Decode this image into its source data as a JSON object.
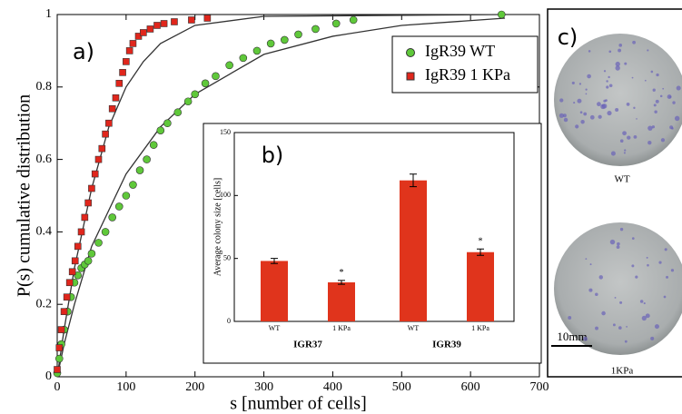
{
  "chart_data": [
    {
      "type": "scatter",
      "label": "a)",
      "xlabel": "s [number of cells]",
      "ylabel": "P(s)  cumulative distribution",
      "xlim": [
        0,
        700
      ],
      "ylim": [
        0,
        1
      ],
      "xticks": [
        0,
        100,
        200,
        300,
        400,
        500,
        600,
        700
      ],
      "yticks": [
        0,
        0.2,
        0.4,
        0.6,
        0.8,
        1
      ],
      "legend": "upper right",
      "series": [
        {
          "name": "IgR39 WT",
          "color": "#5fc83a",
          "marker": "circle",
          "x": [
            0,
            3,
            6,
            10,
            15,
            20,
            25,
            30,
            35,
            40,
            45,
            50,
            60,
            70,
            80,
            90,
            100,
            110,
            120,
            130,
            140,
            150,
            160,
            175,
            190,
            200,
            215,
            230,
            250,
            270,
            290,
            310,
            330,
            350,
            375,
            405,
            430,
            645
          ],
          "values": [
            0.01,
            0.05,
            0.09,
            0.13,
            0.18,
            0.22,
            0.26,
            0.28,
            0.3,
            0.31,
            0.32,
            0.34,
            0.37,
            0.4,
            0.44,
            0.47,
            0.5,
            0.53,
            0.57,
            0.6,
            0.64,
            0.68,
            0.7,
            0.73,
            0.76,
            0.78,
            0.81,
            0.83,
            0.86,
            0.88,
            0.9,
            0.92,
            0.93,
            0.945,
            0.96,
            0.975,
            0.985,
            1.0
          ]
        },
        {
          "name": "IgR39 1 KPa",
          "color": "#e0261c",
          "marker": "square",
          "x": [
            0,
            3,
            6,
            10,
            14,
            18,
            22,
            26,
            30,
            35,
            40,
            45,
            50,
            55,
            60,
            65,
            70,
            75,
            80,
            85,
            90,
            95,
            100,
            105,
            110,
            118,
            125,
            135,
            145,
            155,
            170,
            195,
            218
          ],
          "values": [
            0.02,
            0.08,
            0.13,
            0.18,
            0.22,
            0.26,
            0.29,
            0.32,
            0.36,
            0.4,
            0.44,
            0.48,
            0.52,
            0.56,
            0.6,
            0.63,
            0.67,
            0.7,
            0.74,
            0.77,
            0.81,
            0.84,
            0.87,
            0.9,
            0.92,
            0.94,
            0.95,
            0.96,
            0.97,
            0.975,
            0.98,
            0.985,
            0.99
          ]
        },
        {
          "color": "#333333",
          "marker": "line",
          "x": [
            0,
            10,
            25,
            50,
            75,
            100,
            125,
            150,
            200,
            300,
            650
          ],
          "values": [
            0,
            0.13,
            0.3,
            0.52,
            0.69,
            0.8,
            0.87,
            0.92,
            0.97,
            0.995,
            1
          ]
        },
        {
          "color": "#333333",
          "marker": "line",
          "x": [
            0,
            10,
            25,
            50,
            100,
            150,
            200,
            300,
            400,
            500,
            650
          ],
          "values": [
            0,
            0.09,
            0.2,
            0.36,
            0.56,
            0.69,
            0.78,
            0.89,
            0.94,
            0.97,
            0.99
          ]
        }
      ]
    },
    {
      "type": "bar",
      "label": "b)",
      "ylabel": "Average colony size [cells]",
      "color": "#e0341c",
      "categories": [
        "WT",
        "1 KPa",
        "WT",
        "1 KPa"
      ],
      "groups": [
        "IGR37",
        "IGR39"
      ],
      "values": [
        48,
        31,
        112,
        55
      ],
      "errors": [
        2,
        1.5,
        5,
        2.5
      ],
      "significance": [
        null,
        "*",
        null,
        "*"
      ],
      "ylim": [
        0,
        150
      ],
      "yticks": [
        0,
        50,
        100,
        150
      ]
    }
  ],
  "panel_c": {
    "label": "c)",
    "images": [
      {
        "caption": "WT"
      },
      {
        "caption": "1KPa"
      }
    ],
    "scale_bar": "10mm"
  }
}
